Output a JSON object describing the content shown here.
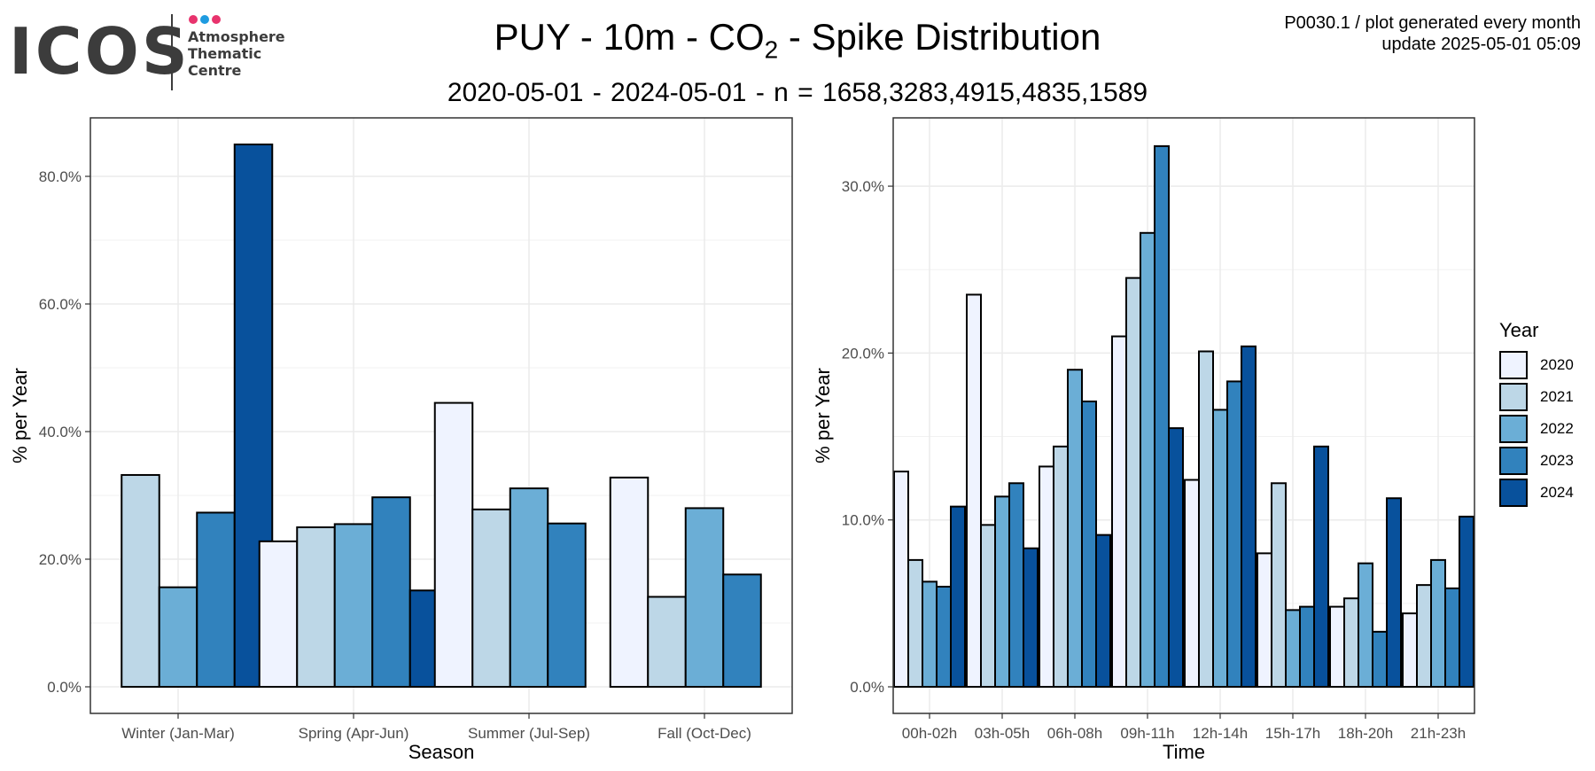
{
  "logo": {
    "text": "ICOS",
    "sub_lines": [
      "Atmosphere",
      "Thematic",
      "Centre"
    ],
    "dot_colors": [
      "#e8336d",
      "#1e9be0",
      "#e8336d"
    ]
  },
  "title": {
    "prefix": "PUY - 10m - CO",
    "subscript": "2",
    "suffix": " - Spike Distribution"
  },
  "subtitle": "2020-05-01  -  2024-05-01  - n =  1658,3283,4915,4835,1589",
  "note": {
    "line1": "P0030.1 / plot generated every month",
    "line2": "update  2025-05-01 05:09"
  },
  "legend": {
    "title": "Year",
    "items": [
      {
        "label": "2020",
        "color": "#eff3ff"
      },
      {
        "label": "2021",
        "color": "#bdd7e7"
      },
      {
        "label": "2022",
        "color": "#6baed6"
      },
      {
        "label": "2023",
        "color": "#3182bd"
      },
      {
        "label": "2024",
        "color": "#08519c"
      }
    ]
  },
  "chart_data": [
    {
      "type": "bar",
      "xlabel": "Season",
      "ylabel": "% per Year",
      "ylim": [
        0,
        85
      ],
      "yticks": [
        0,
        20,
        40,
        60,
        80
      ],
      "ytick_labels": [
        "0.0%",
        "20.0%",
        "40.0%",
        "60.0%",
        "80.0%"
      ],
      "grid": true,
      "categories": [
        "Winter (Jan-Mar)",
        "Spring (Apr-Jun)",
        "Summer (Jul-Sep)",
        "Fall (Oct-Dec)"
      ],
      "series": [
        {
          "name": "2020",
          "values": [
            null,
            22.8,
            44.5,
            32.8
          ]
        },
        {
          "name": "2021",
          "values": [
            33.2,
            25.0,
            27.8,
            14.1
          ]
        },
        {
          "name": "2022",
          "values": [
            15.6,
            25.5,
            31.1,
            28.0
          ]
        },
        {
          "name": "2023",
          "values": [
            27.3,
            29.7,
            25.6,
            17.6
          ]
        },
        {
          "name": "2024",
          "values": [
            85.0,
            15.1,
            null,
            null
          ]
        }
      ]
    },
    {
      "type": "bar",
      "xlabel": "Time",
      "ylabel": "% per Year",
      "ylim": [
        0,
        32.5
      ],
      "yticks": [
        0,
        10,
        20,
        30
      ],
      "ytick_labels": [
        "0.0%",
        "10.0%",
        "20.0%",
        "30.0%"
      ],
      "grid": true,
      "categories": [
        "00h-02h",
        "03h-05h",
        "06h-08h",
        "09h-11h",
        "12h-14h",
        "15h-17h",
        "18h-20h",
        "21h-23h"
      ],
      "series": [
        {
          "name": "2020",
          "values": [
            12.9,
            23.5,
            13.2,
            21.0,
            12.4,
            8.0,
            4.8,
            4.4
          ]
        },
        {
          "name": "2021",
          "values": [
            7.6,
            9.7,
            14.4,
            24.5,
            20.1,
            12.2,
            5.3,
            6.1
          ]
        },
        {
          "name": "2022",
          "values": [
            6.3,
            11.4,
            19.0,
            27.2,
            16.6,
            4.6,
            7.4,
            7.6
          ]
        },
        {
          "name": "2023",
          "values": [
            6.0,
            12.2,
            17.1,
            32.4,
            18.3,
            4.8,
            3.3,
            5.9
          ]
        },
        {
          "name": "2024",
          "values": [
            10.8,
            8.3,
            9.1,
            15.5,
            20.4,
            14.4,
            11.3,
            10.2
          ]
        }
      ]
    }
  ]
}
